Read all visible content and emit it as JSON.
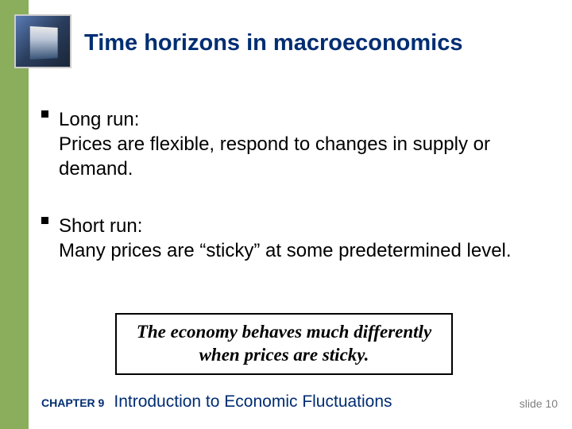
{
  "title": "Time horizons in macroeconomics",
  "bullets": [
    {
      "heading": "Long run:",
      "body": "Prices are flexible, respond to changes in supply or demand."
    },
    {
      "heading": "Short run:",
      "body": "Many prices are “sticky” at some predetermined level."
    }
  ],
  "callout": "The economy behaves much differently when prices are sticky.",
  "footer": {
    "chapter_label": "CHAPTER 9",
    "chapter_title": "Introduction to Economic Fluctuations",
    "slide_number": "slide 10"
  },
  "colors": {
    "sidebar": "#8aae5b",
    "title": "#002d72",
    "footer_text": "#002d72",
    "slide_num": "#808080",
    "body_text": "#000000",
    "background": "#ffffff"
  }
}
